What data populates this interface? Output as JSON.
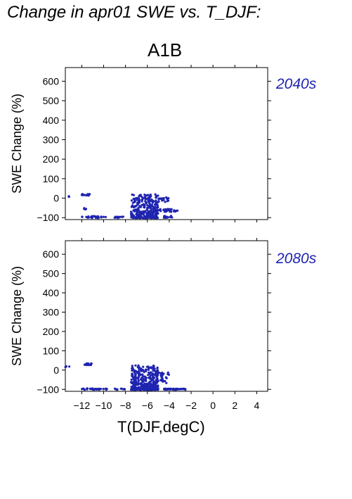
{
  "page_title": "Change in apr01 SWE vs. T_DJF:",
  "scenario_label": "A1B",
  "x_axis_label": "T(DJF,degC)",
  "colors": {
    "points": "#1f24b0",
    "axis": "#000000",
    "period_text": "#1f24b0"
  },
  "chart_data": [
    {
      "type": "scatter",
      "panel": "2040s",
      "ylabel": "SWE Change (%)",
      "xlim": [
        -13.5,
        5.0
      ],
      "ylim": [
        -110,
        670
      ],
      "xticks": [
        -12,
        -10,
        -8,
        -6,
        -4,
        -2,
        0,
        2,
        4
      ],
      "yticks": [
        -100,
        0,
        100,
        200,
        300,
        400,
        500,
        600
      ],
      "ytick_labels": [
        "−100",
        "0",
        "100",
        "200",
        "300",
        "400",
        "500",
        "600"
      ],
      "grid": false,
      "clusters": [
        {
          "x": [
            -13.5,
            -13.0
          ],
          "y": [
            5,
            10
          ]
        },
        {
          "x": [
            -12.1,
            -11.2
          ],
          "y": [
            12,
            22
          ]
        },
        {
          "x": [
            -11.9,
            -11.6
          ],
          "y": [
            -60,
            -50
          ]
        },
        {
          "x": [
            -12.0,
            -9.8
          ],
          "y": [
            -102,
            -92
          ]
        },
        {
          "x": [
            -9.0,
            -8.0
          ],
          "y": [
            -102,
            -95
          ]
        },
        {
          "x": [
            -7.5,
            -5.0
          ],
          "y": [
            -102,
            20
          ]
        },
        {
          "x": [
            -5.5,
            -3.2
          ],
          "y": [
            -70,
            -55
          ]
        },
        {
          "x": [
            -5.2,
            -4.0
          ],
          "y": [
            -20,
            5
          ]
        },
        {
          "x": [
            -4.5,
            -3.5
          ],
          "y": [
            -102,
            -90
          ]
        }
      ]
    },
    {
      "type": "scatter",
      "panel": "2080s",
      "ylabel": "SWE Change (%)",
      "xlim": [
        -13.5,
        5.0
      ],
      "ylim": [
        -110,
        670
      ],
      "xticks": [
        -12,
        -10,
        -8,
        -6,
        -4,
        -2,
        0,
        2,
        4
      ],
      "xtick_labels": [
        "−12",
        "−10",
        "−8",
        "−6",
        "−4",
        "−2",
        "0",
        "2",
        "4"
      ],
      "yticks": [
        -100,
        0,
        100,
        200,
        300,
        400,
        500,
        600
      ],
      "ytick_labels": [
        "−100",
        "0",
        "100",
        "200",
        "300",
        "400",
        "500",
        "600"
      ],
      "grid": false,
      "clusters": [
        {
          "x": [
            -13.5,
            -13.1
          ],
          "y": [
            15,
            20
          ]
        },
        {
          "x": [
            -12.2,
            -11.1
          ],
          "y": [
            25,
            35
          ]
        },
        {
          "x": [
            -12.0,
            -9.6
          ],
          "y": [
            -102,
            -95
          ]
        },
        {
          "x": [
            -9.0,
            -8.0
          ],
          "y": [
            -102,
            -95
          ]
        },
        {
          "x": [
            -7.5,
            -5.0
          ],
          "y": [
            -102,
            25
          ]
        },
        {
          "x": [
            -5.5,
            -4.0
          ],
          "y": [
            -70,
            -10
          ]
        },
        {
          "x": [
            -4.5,
            -2.5
          ],
          "y": [
            -102,
            -96
          ]
        }
      ]
    }
  ]
}
